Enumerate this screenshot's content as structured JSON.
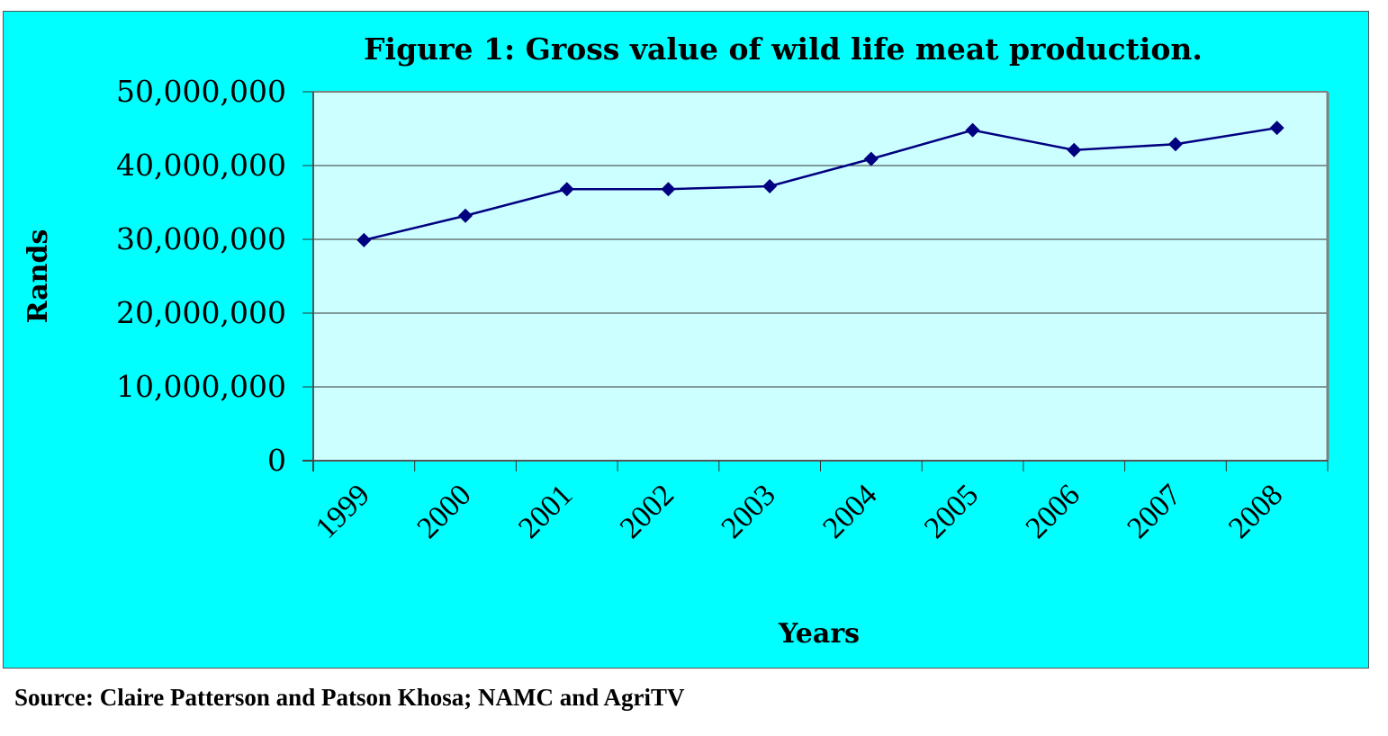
{
  "chart_data": {
    "type": "line",
    "title": "Figure 1: Gross value of wild life meat production.",
    "xlabel": "Years",
    "ylabel": "Rands",
    "categories": [
      "1999",
      "2000",
      "2001",
      "2002",
      "2003",
      "2004",
      "2005",
      "2006",
      "2007",
      "2008"
    ],
    "series": [
      {
        "name": "Gross value",
        "values": [
          29900000,
          33200000,
          36800000,
          36800000,
          37200000,
          40900000,
          44800000,
          42100000,
          42900000,
          45100000
        ]
      }
    ],
    "ylim": [
      0,
      50000000
    ],
    "yticks": [
      0,
      10000000,
      20000000,
      30000000,
      40000000,
      50000000
    ],
    "ytick_labels": [
      "0",
      "10,000,000",
      "20,000,000",
      "30,000,000",
      "40,000,000",
      "50,000,000"
    ],
    "grid": true,
    "legend": "none",
    "marker": "diamond"
  },
  "colors": {
    "frame_background": "#00FFFF",
    "plot_background": "#CCFFFF",
    "line": "#000080",
    "gridline": "#333333",
    "plot_border": "#808080"
  },
  "source_note": "Source: Claire Patterson and Patson Khosa; NAMC and AgriTV"
}
